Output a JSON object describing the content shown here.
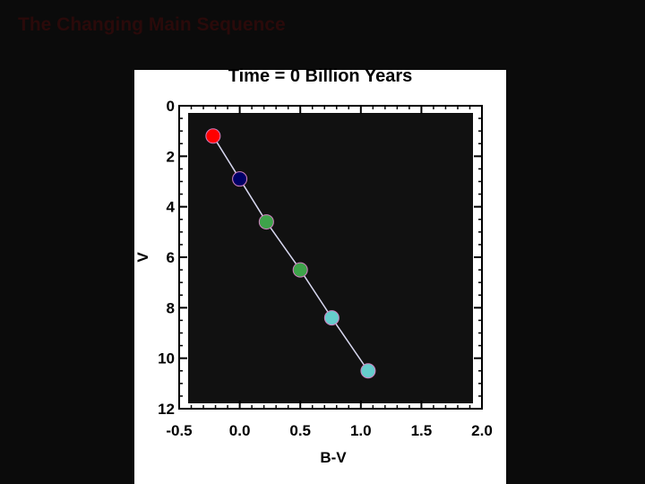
{
  "slide": {
    "title": "The Changing Main Sequence"
  },
  "chart_data": {
    "type": "scatter",
    "title": "Time = 0 Billion Years",
    "xlabel": "B-V",
    "ylabel": "V",
    "xlim": [
      -0.5,
      2.0
    ],
    "ylim": [
      12,
      0
    ],
    "y_inverted": true,
    "x_ticks": [
      "-0.5",
      "0.0",
      "0.5",
      "1.0",
      "1.5",
      "2.0"
    ],
    "y_ticks": [
      "0",
      "2",
      "4",
      "6",
      "8",
      "10",
      "12"
    ],
    "grid": false,
    "connected": true,
    "plot_background": "#111111",
    "line_color": "#d8d8f0",
    "points": [
      {
        "x": -0.22,
        "y": 1.2,
        "color": "#ff0000"
      },
      {
        "x": 0.0,
        "y": 2.9,
        "color": "#000066"
      },
      {
        "x": 0.22,
        "y": 4.6,
        "color": "#3ea34a"
      },
      {
        "x": 0.5,
        "y": 6.5,
        "color": "#3ea34a"
      },
      {
        "x": 0.76,
        "y": 8.4,
        "color": "#66cccc"
      },
      {
        "x": 1.06,
        "y": 10.5,
        "color": "#66cccc"
      }
    ]
  }
}
